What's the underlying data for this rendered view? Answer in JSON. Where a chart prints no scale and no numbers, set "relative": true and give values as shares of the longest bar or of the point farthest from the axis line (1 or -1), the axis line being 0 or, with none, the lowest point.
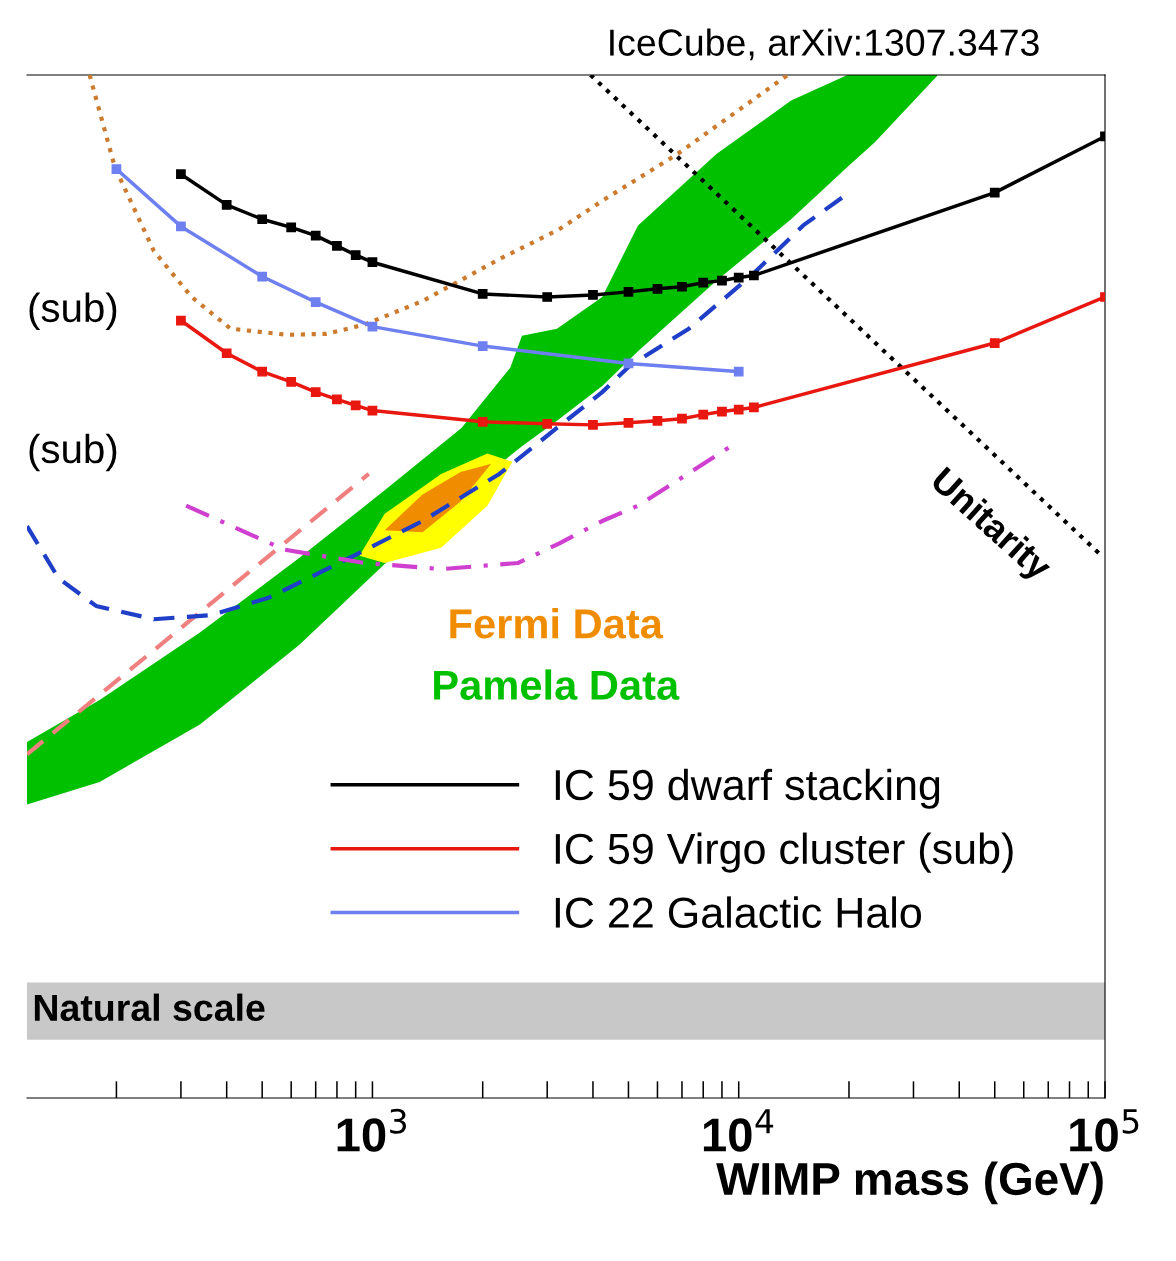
{
  "chart_data": {
    "type": "line",
    "title": "IceCube, arXiv:1307.3473",
    "xlabel": "WIMP mass (GeV)",
    "relative": true,
    "log": "x",
    "xlim": [
      114,
      100000
    ],
    "xticks": [
      {
        "value": 1000,
        "label": "10$^{3}$"
      },
      {
        "value": 10000,
        "label": "10$^{4}$"
      },
      {
        "value": 100000,
        "label": "10$^{5}$"
      }
    ],
    "tick_labels": "x",
    "legend": "bottom",
    "annotations": [
      "(sub)",
      "(sub)"
    ],
    "bands": [
      {
        "axis": "y",
        "from": 0.057,
        "to": 0.113,
        "label": "Natural scale",
        "color": "#c8c8c8"
      }
    ],
    "series": [
      {
        "type": "area",
        "name": "Pamela Data",
        "color": "#00c000",
        "x": [
          114,
          180,
          338,
          632,
          1080,
          1750,
          2380,
          2560,
          3190,
          4240,
          5310,
          8710,
          13900,
          19800,
          23500,
          34800
        ],
        "values": [
          null,
          null,
          null,
          null,
          null,
          null,
          null,
          null,
          null,
          null,
          null,
          null,
          null,
          null,
          null,
          null
        ],
        "upper": [
          0.348,
          0.389,
          0.455,
          0.528,
          0.594,
          0.655,
          0.714,
          0.745,
          0.752,
          0.783,
          0.853,
          0.923,
          0.975,
          1.0,
          1.0,
          1.0
        ],
        "lower": [
          0.287,
          0.309,
          0.365,
          0.443,
          0.522,
          0.588,
          0.628,
          0.637,
          0.662,
          0.696,
          0.73,
          0.799,
          0.859,
          0.91,
          0.934,
          0.999
        ]
      },
      {
        "type": "area",
        "color": "#ffff00",
        "x": [
          922,
          1080,
          1540,
          2060,
          2410
        ],
        "values": [
          null,
          null,
          null,
          null,
          null
        ],
        "upper": [
          0.53,
          0.571,
          0.61,
          0.63,
          0.622
        ],
        "lower": [
          0.53,
          0.523,
          0.538,
          0.579,
          0.622
        ]
      },
      {
        "type": "area",
        "name": "Fermi Data",
        "color": "#f08c00",
        "x": [
          1080,
          1370,
          1740,
          2110
        ],
        "values": [
          null,
          null,
          null,
          null
        ],
        "upper": [
          0.555,
          0.59,
          0.612,
          0.62
        ],
        "lower": [
          0.555,
          0.553,
          0.583,
          0.62
        ]
      },
      {
        "color": "#cc7a2e",
        "line_style": "dotted",
        "x": [
          169,
          198,
          253,
          321,
          410,
          586,
          749,
          951,
          1370,
          2220,
          3230,
          4240,
          6820,
          13600
        ],
        "values": [
          1.0,
          0.91,
          0.828,
          0.783,
          0.752,
          0.746,
          0.747,
          0.756,
          0.779,
          0.82,
          0.849,
          0.877,
          0.923,
          1.0
        ]
      },
      {
        "color": "#f08080",
        "line_style": "dashed",
        "x": [
          114,
          977
        ],
        "values": [
          0.336,
          0.61
        ]
      },
      {
        "color": "#1f3fc8",
        "line_style": "dashed",
        "x": [
          114,
          139,
          176,
          253,
          362,
          521,
          844,
          1370,
          2220,
          3190,
          4240,
          5050,
          7310,
          10900,
          15000,
          20000
        ],
        "values": [
          0.559,
          0.508,
          0.481,
          0.468,
          0.472,
          0.489,
          0.526,
          0.564,
          0.61,
          0.655,
          0.69,
          0.716,
          0.752,
          0.805,
          0.853,
          0.885
        ]
      },
      {
        "color": "#d040d0",
        "line_style": "dashdot",
        "x": [
          310,
          575,
          951,
          1540,
          2500,
          3230,
          4240,
          5310,
          9510
        ],
        "values": [
          0.579,
          0.536,
          0.523,
          0.517,
          0.523,
          0.542,
          0.564,
          0.579,
          0.637
        ]
      },
      {
        "name": "Unitarity",
        "color": "#000000",
        "line_style": "dotted",
        "x": [
          3940,
          96600
        ],
        "values": [
          1.0,
          0.532
        ]
      },
      {
        "name": "IC 59 dwarf stacking",
        "color": "#000000",
        "line_style": "solid",
        "marker": "square",
        "x": [
          300,
          400,
          500,
          600,
          700,
          800,
          900,
          1000,
          2000,
          3000,
          4000,
          5000,
          6000,
          7000,
          8000,
          9000,
          10000,
          11000,
          50000,
          100000
        ],
        "values": [
          0.903,
          0.873,
          0.859,
          0.851,
          0.843,
          0.833,
          0.824,
          0.817,
          0.786,
          0.783,
          0.785,
          0.788,
          0.791,
          0.793,
          0.797,
          0.799,
          0.802,
          0.804,
          0.885,
          0.94
        ]
      },
      {
        "name": "IC 59 Virgo cluster (sub)",
        "color": "#e8170f",
        "line_style": "solid",
        "marker": "square",
        "x": [
          300,
          400,
          500,
          600,
          700,
          800,
          900,
          1000,
          2000,
          3000,
          4000,
          5000,
          6000,
          7000,
          8000,
          9000,
          10000,
          11000,
          50000,
          100000
        ],
        "values": [
          0.76,
          0.728,
          0.71,
          0.7,
          0.69,
          0.683,
          0.677,
          0.672,
          0.661,
          0.659,
          0.658,
          0.66,
          0.662,
          0.664,
          0.668,
          0.671,
          0.673,
          0.675,
          0.738,
          0.783
        ]
      },
      {
        "name": "IC 22 Galactic Halo",
        "color": "#6e7ff0",
        "line_style": "solid",
        "marker": "square",
        "x": [
          200,
          300,
          500,
          700,
          1000,
          2000,
          5000,
          10000
        ],
        "values": [
          0.908,
          0.852,
          0.803,
          0.778,
          0.754,
          0.735,
          0.718,
          0.71
        ]
      }
    ]
  }
}
